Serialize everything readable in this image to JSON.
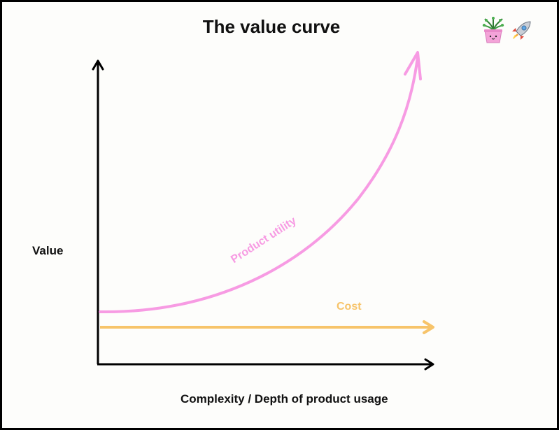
{
  "title": "The value curve",
  "y_axis_label": "Value",
  "x_axis_label": "Complexity / Depth of product usage",
  "series": {
    "product_utility": {
      "label": "Product utility",
      "color": "#f79be3"
    },
    "cost": {
      "label": "Cost",
      "color": "#f7c46a"
    }
  },
  "icons": [
    "potted-plant-icon",
    "rocket-icon"
  ]
}
